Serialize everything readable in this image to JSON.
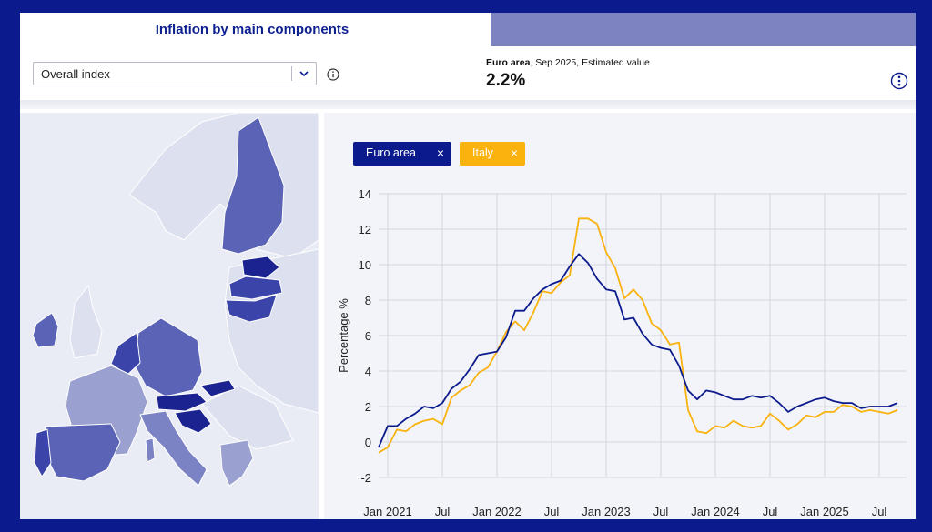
{
  "header": {
    "title": "Inflation by main components",
    "select_value": "Overall index",
    "kpi_region": "Euro area",
    "kpi_detail": ", Sep 2025, Estimated value",
    "kpi_value": "2.2%"
  },
  "legend": {
    "chips": [
      {
        "label": "Euro area",
        "remove": "×",
        "color": "#0b1a8c"
      },
      {
        "label": "Italy",
        "remove": "×",
        "color": "#f9b20e"
      }
    ]
  },
  "colors": {
    "accent": "#0b1a8c",
    "italy": "#f9b20e",
    "map_dark": "#1a2390",
    "map_mid": "#5a63b5",
    "map_light": "#c6cae6"
  },
  "chart_data": {
    "type": "line",
    "title": "",
    "xlabel": "",
    "ylabel": "Percentage %",
    "ylim": [
      -2,
      14
    ],
    "yticks": [
      -2,
      0,
      2,
      4,
      6,
      8,
      10,
      12,
      14
    ],
    "xtick_labels": [
      "Jan 2021",
      "Jul",
      "Jan 2022",
      "Jul",
      "Jan 2023",
      "Jul",
      "Jan 2024",
      "Jul",
      "Jan 2025",
      "Jul"
    ],
    "xtick_months": [
      0,
      6,
      12,
      18,
      24,
      30,
      36,
      42,
      48,
      54
    ],
    "x_start": "Dec 2020",
    "x_range_months": [
      -1,
      57
    ],
    "series": [
      {
        "name": "Euro area",
        "color": "#0b1a8c",
        "start_month": -1,
        "values": [
          -0.3,
          0.9,
          0.9,
          1.3,
          1.6,
          2.0,
          1.9,
          2.2,
          3.0,
          3.4,
          4.1,
          4.9,
          5.0,
          5.1,
          5.9,
          7.4,
          7.4,
          8.1,
          8.6,
          8.9,
          9.1,
          9.9,
          10.6,
          10.1,
          9.2,
          8.6,
          8.5,
          6.9,
          7.0,
          6.1,
          5.5,
          5.3,
          5.2,
          4.3,
          2.9,
          2.4,
          2.9,
          2.8,
          2.6,
          2.4,
          2.4,
          2.6,
          2.5,
          2.6,
          2.2,
          1.7,
          2.0,
          2.2,
          2.4,
          2.5,
          2.3,
          2.2,
          2.2,
          1.9,
          2.0,
          2.0,
          2.0,
          2.2
        ]
      },
      {
        "name": "Italy",
        "color": "#f9b20e",
        "start_month": -1,
        "values": [
          -0.6,
          -0.3,
          0.7,
          0.6,
          1.0,
          1.2,
          1.3,
          1.0,
          2.5,
          2.9,
          3.2,
          3.9,
          4.2,
          5.1,
          6.2,
          6.8,
          6.3,
          7.3,
          8.5,
          8.4,
          9.0,
          9.4,
          12.6,
          12.6,
          12.3,
          10.7,
          9.8,
          8.1,
          8.6,
          8.0,
          6.7,
          6.3,
          5.5,
          5.6,
          1.8,
          0.6,
          0.5,
          0.9,
          0.8,
          1.2,
          0.9,
          0.8,
          0.9,
          1.6,
          1.2,
          0.7,
          1.0,
          1.5,
          1.4,
          1.7,
          1.7,
          2.1,
          2.0,
          1.7,
          1.8,
          1.7,
          1.6,
          1.8
        ]
      }
    ]
  }
}
